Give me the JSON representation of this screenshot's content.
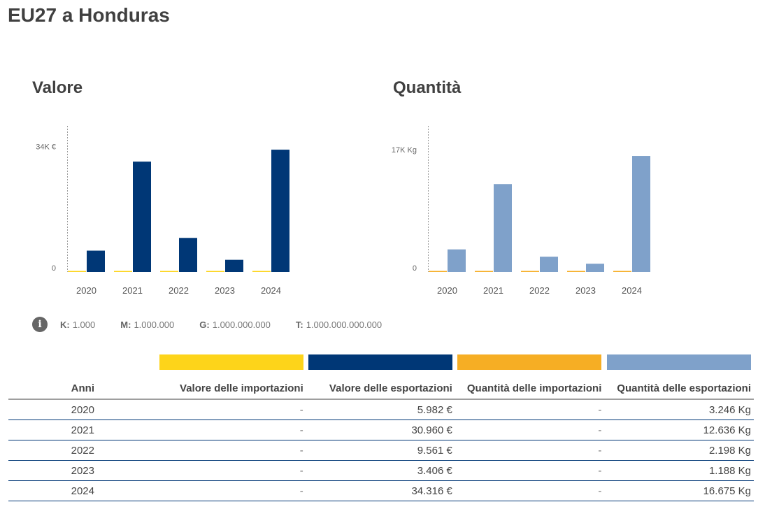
{
  "page": {
    "title": "EU27 a Honduras"
  },
  "colors": {
    "import_value": "#FDD41A",
    "export_value": "#003776",
    "import_quantity": "#F6AE24",
    "export_quantity": "#7FA1CA",
    "row_border": "#003776"
  },
  "chart_data": [
    {
      "type": "bar",
      "title": "Valore",
      "categories": [
        "2020",
        "2021",
        "2022",
        "2023",
        "2024"
      ],
      "series": [
        {
          "name": "Valore delle importazioni",
          "values": [
            0,
            0,
            0,
            0,
            0
          ],
          "color": "#FDD41A"
        },
        {
          "name": "Valore delle esportazioni",
          "values": [
            5982,
            30960,
            9561,
            3406,
            34316
          ],
          "color": "#003776"
        }
      ],
      "yticks": [
        {
          "value": 0,
          "label": "0"
        },
        {
          "value": 34000,
          "label": "34K €"
        }
      ],
      "ylim": [
        0,
        41000
      ],
      "xlabel": "",
      "ylabel": "",
      "grid": false,
      "legend": "none"
    },
    {
      "type": "bar",
      "title": "Quantità",
      "categories": [
        "2020",
        "2021",
        "2022",
        "2023",
        "2024"
      ],
      "series": [
        {
          "name": "Quantità delle importazioni",
          "values": [
            0,
            0,
            0,
            0,
            0
          ],
          "color": "#F6AE24"
        },
        {
          "name": "Quantità delle esportazioni",
          "values": [
            3246,
            12636,
            2198,
            1188,
            16675
          ],
          "color": "#7FA1CA"
        }
      ],
      "yticks": [
        {
          "value": 0,
          "label": "0"
        },
        {
          "value": 17000,
          "label": "17K Kg"
        }
      ],
      "ylim": [
        0,
        21000
      ],
      "xlabel": "",
      "ylabel": "",
      "grid": false,
      "legend": "none"
    }
  ],
  "units": [
    {
      "key": "K:",
      "value": "1.000"
    },
    {
      "key": "M:",
      "value": "1.000.000"
    },
    {
      "key": "G:",
      "value": "1.000.000.000"
    },
    {
      "key": "T:",
      "value": "1.000.000.000.000"
    }
  ],
  "table": {
    "headers": [
      "Anni",
      "Valore delle importazioni",
      "Valore delle esportazioni",
      "Quantità delle importazioni",
      "Quantità delle esportazioni"
    ],
    "rows": [
      [
        "2020",
        "-",
        "5.982 €",
        "-",
        "3.246 Kg"
      ],
      [
        "2021",
        "-",
        "30.960 €",
        "-",
        "12.636 Kg"
      ],
      [
        "2022",
        "-",
        "9.561 €",
        "-",
        "2.198 Kg"
      ],
      [
        "2023",
        "-",
        "3.406 €",
        "-",
        "1.188 Kg"
      ],
      [
        "2024",
        "-",
        "34.316 €",
        "-",
        "16.675 Kg"
      ]
    ]
  }
}
